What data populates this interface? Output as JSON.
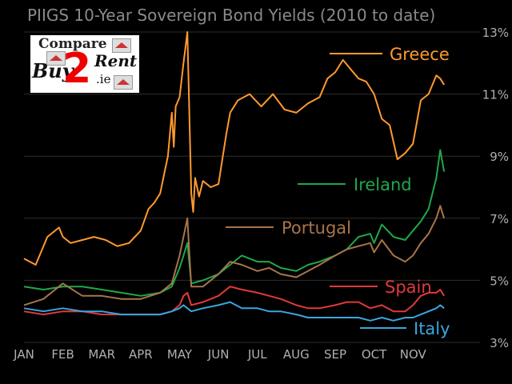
{
  "chart_data": {
    "type": "line",
    "title": "PIIGS 10-Year Sovereign Bond Yields (2010 to date)",
    "x_ticks": [
      "JAN",
      "FEB",
      "MAR",
      "APR",
      "MAY",
      "JUN",
      "JUL",
      "AUG",
      "SEP",
      "OCT",
      "NOV"
    ],
    "y_ticks": [
      "13%",
      "11%",
      "9%",
      "7%",
      "5%",
      "3%"
    ],
    "ylim": [
      3,
      13
    ],
    "xlim": [
      0,
      10.9
    ],
    "ylabel_side": "right",
    "grid": "horizontal",
    "legend": "inline labels at right of each series",
    "series": [
      {
        "name": "Greece",
        "color": "#ff9a2e",
        "x": [
          0,
          0.3,
          0.6,
          0.9,
          1.0,
          1.2,
          1.5,
          1.8,
          2.1,
          2.4,
          2.7,
          3.0,
          3.2,
          3.35,
          3.5,
          3.6,
          3.7,
          3.8,
          3.85,
          3.9,
          4.0,
          4.1,
          4.2,
          4.3,
          4.35,
          4.4,
          4.5,
          4.6,
          4.8,
          5.0,
          5.2,
          5.3,
          5.5,
          5.8,
          6.1,
          6.4,
          6.7,
          7.0,
          7.3,
          7.6,
          7.8,
          8.0,
          8.2,
          8.4,
          8.6,
          8.8,
          9.0,
          9.2,
          9.4,
          9.6,
          9.8,
          10.0,
          10.2,
          10.4,
          10.6,
          10.7,
          10.8
        ],
        "y": [
          5.7,
          5.5,
          6.4,
          6.7,
          6.4,
          6.2,
          6.3,
          6.4,
          6.3,
          6.1,
          6.2,
          6.6,
          7.3,
          7.5,
          7.8,
          8.4,
          9.0,
          10.4,
          9.3,
          10.6,
          10.9,
          12.0,
          13.0,
          7.8,
          7.2,
          8.3,
          7.7,
          8.2,
          8.0,
          8.1,
          9.7,
          10.4,
          10.8,
          11.0,
          10.6,
          11.0,
          10.5,
          10.4,
          10.7,
          10.9,
          11.5,
          11.7,
          12.1,
          11.8,
          11.5,
          11.4,
          11.0,
          10.2,
          10.0,
          8.9,
          9.1,
          9.4,
          10.8,
          11.0,
          11.6,
          11.5,
          11.3
        ]
      },
      {
        "name": "Ireland",
        "color": "#1fa84a",
        "x": [
          0,
          0.5,
          1.0,
          1.5,
          2.0,
          2.5,
          3.0,
          3.5,
          3.8,
          4.0,
          4.1,
          4.2,
          4.3,
          4.6,
          5.0,
          5.3,
          5.6,
          6.0,
          6.3,
          6.6,
          7.0,
          7.3,
          7.6,
          8.0,
          8.3,
          8.6,
          8.9,
          9.0,
          9.2,
          9.5,
          9.8,
          10.0,
          10.2,
          10.4,
          10.6,
          10.7,
          10.8
        ],
        "y": [
          4.8,
          4.7,
          4.8,
          4.8,
          4.7,
          4.6,
          4.5,
          4.6,
          4.8,
          5.4,
          5.8,
          6.2,
          4.9,
          5.0,
          5.2,
          5.5,
          5.8,
          5.6,
          5.6,
          5.4,
          5.3,
          5.5,
          5.6,
          5.8,
          6.0,
          6.4,
          6.5,
          6.2,
          6.8,
          6.4,
          6.3,
          6.6,
          6.9,
          7.3,
          8.3,
          9.2,
          8.5
        ]
      },
      {
        "name": "Portugal",
        "color": "#a8754a",
        "x": [
          0,
          0.5,
          1.0,
          1.5,
          2.0,
          2.5,
          3.0,
          3.5,
          3.8,
          4.0,
          4.1,
          4.2,
          4.3,
          4.6,
          5.0,
          5.3,
          5.6,
          6.0,
          6.3,
          6.6,
          7.0,
          7.3,
          7.6,
          8.0,
          8.3,
          8.6,
          8.9,
          9.0,
          9.2,
          9.5,
          9.8,
          10.0,
          10.2,
          10.4,
          10.6,
          10.7,
          10.8
        ],
        "y": [
          4.2,
          4.4,
          4.9,
          4.5,
          4.5,
          4.4,
          4.4,
          4.6,
          4.9,
          5.8,
          6.4,
          7.0,
          4.8,
          4.8,
          5.2,
          5.6,
          5.5,
          5.3,
          5.4,
          5.2,
          5.1,
          5.3,
          5.5,
          5.8,
          6.0,
          6.1,
          6.2,
          5.9,
          6.3,
          5.8,
          5.6,
          5.8,
          6.2,
          6.5,
          7.0,
          7.4,
          7.0
        ]
      },
      {
        "name": "Spain",
        "color": "#e03a3a",
        "x": [
          0,
          0.5,
          1.0,
          1.5,
          2.0,
          2.5,
          3.0,
          3.5,
          3.8,
          4.0,
          4.1,
          4.2,
          4.3,
          4.6,
          5.0,
          5.3,
          5.6,
          6.0,
          6.3,
          6.6,
          7.0,
          7.3,
          7.6,
          8.0,
          8.3,
          8.6,
          8.9,
          9.2,
          9.5,
          9.8,
          10.0,
          10.2,
          10.4,
          10.6,
          10.7,
          10.8
        ],
        "y": [
          4.0,
          3.9,
          4.0,
          4.0,
          3.9,
          3.9,
          3.9,
          3.9,
          4.0,
          4.2,
          4.5,
          4.6,
          4.2,
          4.3,
          4.5,
          4.8,
          4.7,
          4.6,
          4.5,
          4.4,
          4.2,
          4.1,
          4.1,
          4.2,
          4.3,
          4.3,
          4.1,
          4.2,
          4.0,
          4.0,
          4.2,
          4.5,
          4.6,
          4.6,
          4.7,
          4.5
        ]
      },
      {
        "name": "Italy",
        "color": "#3aa6e0",
        "x": [
          0,
          0.5,
          1.0,
          1.5,
          2.0,
          2.5,
          3.0,
          3.5,
          3.8,
          4.0,
          4.1,
          4.2,
          4.3,
          4.6,
          5.0,
          5.3,
          5.6,
          6.0,
          6.3,
          6.6,
          7.0,
          7.3,
          7.6,
          8.0,
          8.3,
          8.6,
          8.9,
          9.2,
          9.5,
          9.8,
          10.0,
          10.2,
          10.4,
          10.6,
          10.7,
          10.8
        ],
        "y": [
          4.1,
          4.0,
          4.1,
          4.0,
          4.0,
          3.9,
          3.9,
          3.9,
          4.0,
          4.1,
          4.2,
          4.1,
          4.0,
          4.1,
          4.2,
          4.3,
          4.1,
          4.1,
          4.0,
          4.0,
          3.9,
          3.8,
          3.8,
          3.8,
          3.8,
          3.8,
          3.7,
          3.8,
          3.7,
          3.8,
          3.8,
          3.9,
          4.0,
          4.1,
          4.2,
          4.1
        ]
      }
    ]
  },
  "logo": {
    "compare": "Compare",
    "buy": "Buy",
    "two": "2",
    "rent": "Rent",
    "ie": ".ie"
  }
}
